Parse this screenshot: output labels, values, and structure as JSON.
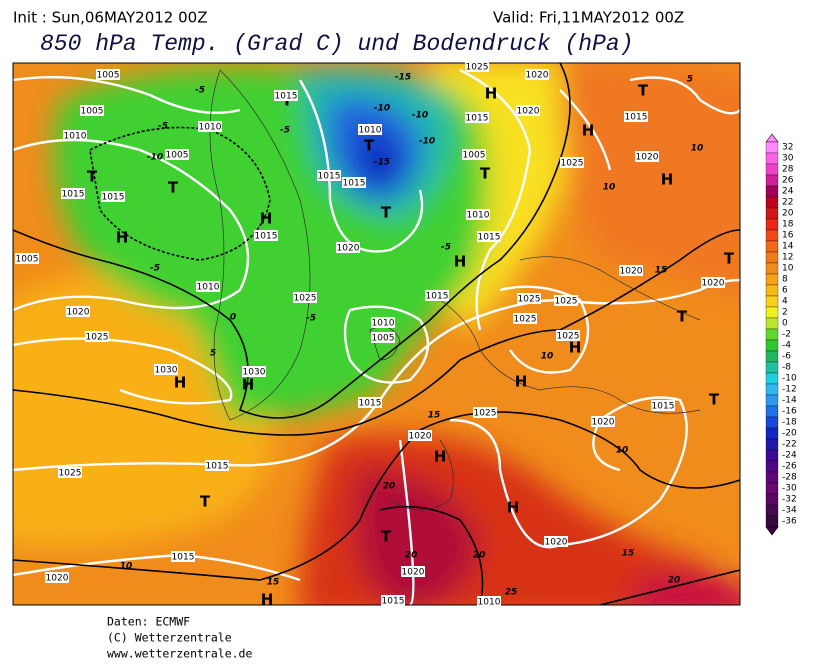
{
  "header": {
    "init": "Init : Sun,06MAY2012 00Z",
    "valid": "Valid: Fri,11MAY2012 00Z",
    "title": "850 hPa Temp. (Grad C) und Bodendruck (hPa)"
  },
  "map": {
    "labels": [
      "1005",
      "1005",
      "1010",
      "1010",
      "1005",
      "-10",
      "-5",
      "1015",
      "T",
      "1015",
      "T",
      "H",
      "-5",
      "T",
      "1015",
      "-5",
      "H",
      "1015",
      "1010",
      "1020",
      "1025",
      "-5",
      "1005",
      "1030",
      "H",
      "1030",
      "H",
      "5",
      "0",
      "1025",
      "1020",
      "-5",
      "1010",
      "1015",
      "1015",
      "T",
      "-15",
      "-10",
      "-10",
      "-10",
      "-15",
      "T",
      "1025",
      "1020",
      "H",
      "1020",
      "1015",
      "H",
      "1025",
      "1005",
      "T",
      "1010",
      "1015",
      "-5",
      "H",
      "1015",
      "1010",
      "1005",
      "1015",
      "T",
      "1015",
      "1020",
      "10",
      "10",
      "H",
      "5",
      "1020",
      "15",
      "1020",
      "T",
      "T",
      "1025",
      "1025",
      "1025",
      "H",
      "1025",
      "10",
      "H",
      "1015",
      "T",
      "1020",
      "10",
      "15",
      "1020",
      "1025",
      "H",
      "1015",
      "1025",
      "T",
      "20",
      "H",
      "T",
      "20",
      "20",
      "1020",
      "15",
      "1015",
      "10",
      "1020",
      "15",
      "H",
      "1020",
      "20",
      "1015",
      "1010",
      "25"
    ]
  },
  "legend": {
    "labels": [
      32,
      30,
      28,
      26,
      24,
      22,
      20,
      18,
      16,
      14,
      12,
      10,
      8,
      6,
      4,
      2,
      0,
      -2,
      -4,
      -6,
      -8,
      -10,
      -12,
      -14,
      -16,
      -18,
      -20,
      -22,
      -24,
      -26,
      -28,
      -30,
      -32,
      -34,
      -36
    ]
  },
  "footer": [
    "Daten: ECMWF",
    "(C) Wetterzentrale",
    "www.wetterzentrale.de"
  ]
}
